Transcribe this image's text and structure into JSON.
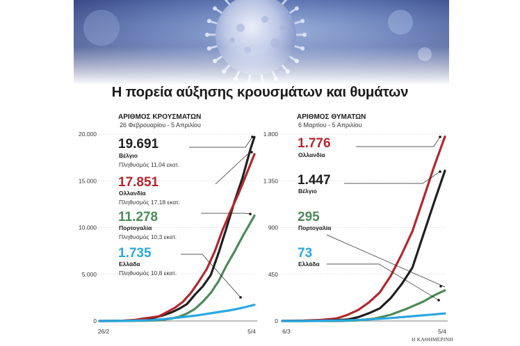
{
  "title": "Η πορεία αύξησης κρουσμάτων και θυμάτων",
  "credit": "Η ΚΑΘΗΜΕΡΙΝΗ",
  "colors": {
    "belgium": "#1f1f1f",
    "netherlands": "#b3262c",
    "portugal": "#4b8a57",
    "greece": "#29a8df"
  },
  "chart_data": [
    {
      "type": "line",
      "title": "ΑΡΙΘΜΟΣ ΚΡΟΥΣΜΑΤΩΝ",
      "subtitle": "26 Φεβρουαρίου - 5 Απριλίου",
      "x_tick_labels": [
        "26/2",
        "5/4"
      ],
      "x_range": [
        "2020-02-26",
        "2020-04-05"
      ],
      "ylim": [
        0,
        20000
      ],
      "y_ticks": [
        0,
        5000,
        10000,
        15000,
        20000
      ],
      "y_tick_labels": [
        "0",
        "5.000",
        "10.000",
        "15.000",
        "20.000"
      ],
      "grid": false,
      "series": [
        {
          "key": "belgium",
          "value_label": "19.691",
          "country": "Βέλγιο",
          "population": "Πληθυσμός 11,04 εκατ.",
          "points": [
            [
              "2020-03-01",
              0
            ],
            [
              "2020-03-05",
              50
            ],
            [
              "2020-03-08",
              170
            ],
            [
              "2020-03-10",
              270
            ],
            [
              "2020-03-13",
              600
            ],
            [
              "2020-03-15",
              900
            ],
            [
              "2020-03-17",
              1290
            ],
            [
              "2020-03-19",
              1800
            ],
            [
              "2020-03-21",
              2800
            ],
            [
              "2020-03-23",
              3700
            ],
            [
              "2020-03-25",
              4900
            ],
            [
              "2020-03-27",
              7300
            ],
            [
              "2020-03-29",
              10000
            ],
            [
              "2020-03-31",
              12800
            ],
            [
              "2020-04-02",
              15300
            ],
            [
              "2020-04-04",
              18400
            ],
            [
              "2020-04-05",
              19691
            ]
          ]
        },
        {
          "key": "netherlands",
          "value_label": "17.851",
          "country": "Ολλανδία",
          "population": "Πληθυσμός 17,18 εκατ.",
          "points": [
            [
              "2020-02-27",
              0
            ],
            [
              "2020-03-03",
              38
            ],
            [
              "2020-03-06",
              128
            ],
            [
              "2020-03-08",
              265
            ],
            [
              "2020-03-10",
              382
            ],
            [
              "2020-03-12",
              503
            ],
            [
              "2020-03-14",
              959
            ],
            [
              "2020-03-16",
              1413
            ],
            [
              "2020-03-18",
              2051
            ],
            [
              "2020-03-20",
              2994
            ],
            [
              "2020-03-22",
              4216
            ],
            [
              "2020-03-24",
              5560
            ],
            [
              "2020-03-26",
              7431
            ],
            [
              "2020-03-28",
              9762
            ],
            [
              "2020-03-30",
              11750
            ],
            [
              "2020-04-01",
              13614
            ],
            [
              "2020-04-03",
              15723
            ],
            [
              "2020-04-05",
              17851
            ]
          ]
        },
        {
          "key": "portugal",
          "value_label": "11.278",
          "country": "Πορτογαλία",
          "population": "Πληθυσμός 10,3 εκατ.",
          "points": [
            [
              "2020-03-02",
              0
            ],
            [
              "2020-03-08",
              30
            ],
            [
              "2020-03-12",
              78
            ],
            [
              "2020-03-15",
              245
            ],
            [
              "2020-03-17",
              448
            ],
            [
              "2020-03-19",
              785
            ],
            [
              "2020-03-21",
              1280
            ],
            [
              "2020-03-23",
              2060
            ],
            [
              "2020-03-25",
              2995
            ],
            [
              "2020-03-27",
              4268
            ],
            [
              "2020-03-29",
              5962
            ],
            [
              "2020-03-31",
              7443
            ],
            [
              "2020-04-02",
              9034
            ],
            [
              "2020-04-04",
              10524
            ],
            [
              "2020-04-05",
              11278
            ]
          ]
        },
        {
          "key": "greece",
          "value_label": "1.735",
          "country": "Ελλάδα",
          "population": "Πληθυσμός 10,8 εκατ.",
          "points": [
            [
              "2020-02-26",
              1
            ],
            [
              "2020-03-05",
              31
            ],
            [
              "2020-03-10",
              89
            ],
            [
              "2020-03-14",
              228
            ],
            [
              "2020-03-18",
              418
            ],
            [
              "2020-03-22",
              624
            ],
            [
              "2020-03-26",
              892
            ],
            [
              "2020-03-30",
              1156
            ],
            [
              "2020-04-02",
              1415
            ],
            [
              "2020-04-05",
              1735
            ]
          ]
        }
      ]
    },
    {
      "type": "line",
      "title": "ΑΡΙΘΜΟΣ ΘΥΜΑΤΩΝ",
      "subtitle": "6 Μαρτίου - 5 Απριλίου",
      "x_tick_labels": [
        "6/3",
        "5/4"
      ],
      "x_range": [
        "2020-03-06",
        "2020-04-05"
      ],
      "ylim": [
        0,
        1800
      ],
      "y_ticks": [
        0,
        450,
        900,
        1350,
        1800
      ],
      "y_tick_labels": [
        "0",
        "450",
        "900",
        "1.350",
        "1.800"
      ],
      "grid": false,
      "series": [
        {
          "key": "netherlands",
          "value_label": "1.776",
          "country": "Ολλανδία",
          "points": [
            [
              "2020-03-06",
              1
            ],
            [
              "2020-03-10",
              4
            ],
            [
              "2020-03-13",
              10
            ],
            [
              "2020-03-16",
              24
            ],
            [
              "2020-03-18",
              58
            ],
            [
              "2020-03-20",
              106
            ],
            [
              "2020-03-22",
              179
            ],
            [
              "2020-03-24",
              276
            ],
            [
              "2020-03-26",
              434
            ],
            [
              "2020-03-28",
              639
            ],
            [
              "2020-03-30",
              864
            ],
            [
              "2020-04-01",
              1173
            ],
            [
              "2020-04-03",
              1487
            ],
            [
              "2020-04-05",
              1776
            ]
          ]
        },
        {
          "key": "belgium",
          "value_label": "1.447",
          "country": "Βέλγιο",
          "points": [
            [
              "2020-03-10",
              0
            ],
            [
              "2020-03-14",
              3
            ],
            [
              "2020-03-18",
              14
            ],
            [
              "2020-03-20",
              37
            ],
            [
              "2020-03-22",
              75
            ],
            [
              "2020-03-24",
              122
            ],
            [
              "2020-03-26",
              220
            ],
            [
              "2020-03-28",
              353
            ],
            [
              "2020-03-30",
              513
            ],
            [
              "2020-04-01",
              828
            ],
            [
              "2020-04-03",
              1143
            ],
            [
              "2020-04-05",
              1447
            ]
          ]
        },
        {
          "key": "portugal",
          "value_label": "295",
          "country": "Πορτογαλία",
          "points": [
            [
              "2020-03-15",
              0
            ],
            [
              "2020-03-17",
              1
            ],
            [
              "2020-03-20",
              6
            ],
            [
              "2020-03-23",
              23
            ],
            [
              "2020-03-26",
              60
            ],
            [
              "2020-03-29",
              119
            ],
            [
              "2020-04-01",
              187
            ],
            [
              "2020-04-03",
              246
            ],
            [
              "2020-04-05",
              295
            ]
          ]
        },
        {
          "key": "greece",
          "value_label": "73",
          "country": "Ελλάδα",
          "points": [
            [
              "2020-03-11",
              0
            ],
            [
              "2020-03-14",
              3
            ],
            [
              "2020-03-18",
              6
            ],
            [
              "2020-03-22",
              15
            ],
            [
              "2020-03-26",
              28
            ],
            [
              "2020-03-30",
              46
            ],
            [
              "2020-04-02",
              59
            ],
            [
              "2020-04-05",
              73
            ]
          ]
        }
      ]
    }
  ]
}
